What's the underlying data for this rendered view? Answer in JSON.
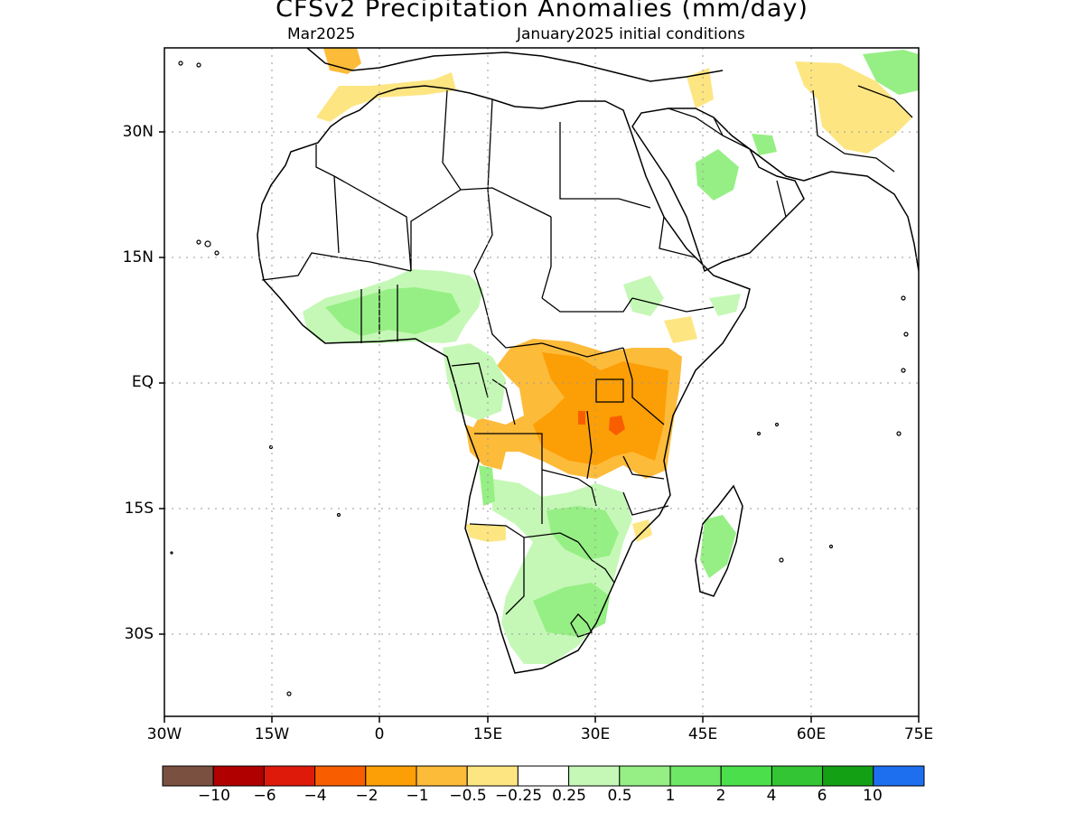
{
  "title": "CFSv2 Precipitation Anomalies (mm/day)",
  "subtitle_left": "Mar2025",
  "subtitle_right": "January2025 initial conditions",
  "lat_labels": [
    "30N",
    "15N",
    "EQ",
    "15S",
    "30S"
  ],
  "lon_labels": [
    "30W",
    "15W",
    "0",
    "15E",
    "30E",
    "45E",
    "60E",
    "75E"
  ],
  "colorbar": {
    "labels": [
      "−10",
      "−6",
      "−4",
      "−2",
      "−1",
      "−0.5",
      "−0.25",
      "0.25",
      "0.5",
      "1",
      "2",
      "4",
      "6",
      "10"
    ],
    "colors": [
      "#7a5040",
      "#b00000",
      "#de1a0a",
      "#f85e00",
      "#fc9e06",
      "#fdbb3a",
      "#fde682",
      "#ffffff",
      "#c5f8b6",
      "#96ef84",
      "#6fe766",
      "#4be04b",
      "#33c533",
      "#14a014",
      "#1e6ef0"
    ]
  },
  "map": {
    "lon_range": [
      -30,
      75
    ],
    "lat_range": [
      -40,
      40
    ],
    "land_outline_color": "#000000",
    "grid": "dotted"
  }
}
